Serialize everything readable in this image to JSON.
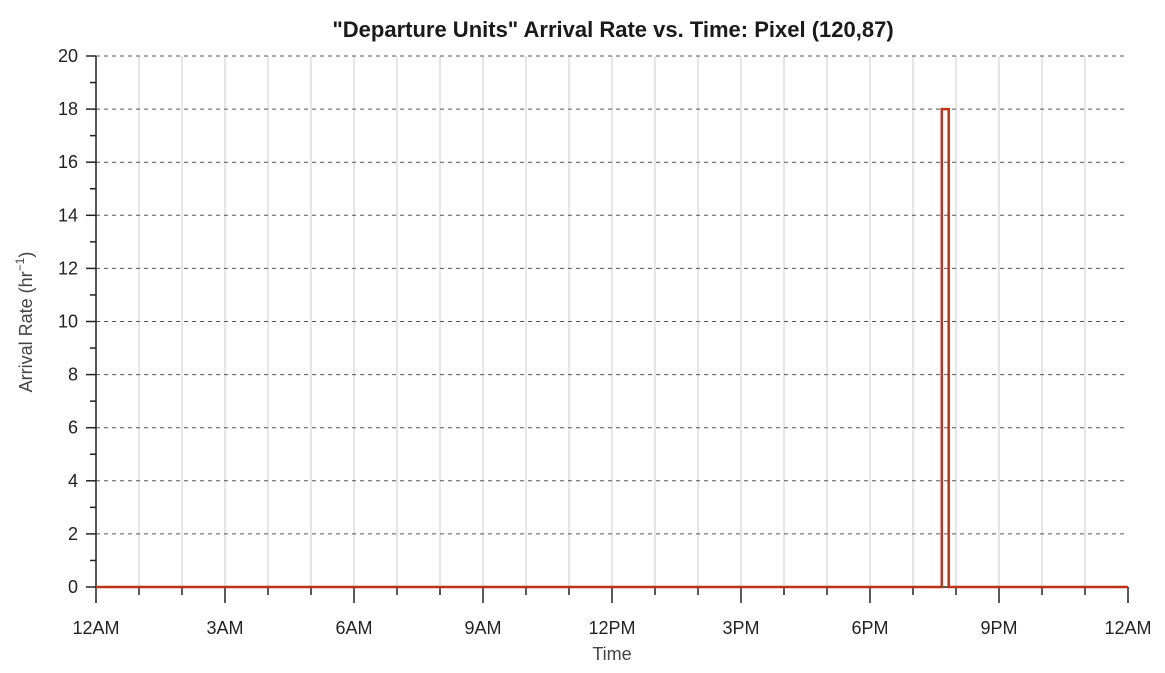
{
  "chart_data": {
    "type": "line",
    "title": "\"Departure Units\" Arrival Rate vs. Time: Pixel (120,87)",
    "xlabel": "Time",
    "ylabel": "Arrival Rate (hr",
    "ylabel_sup": "−1",
    "ylabel_close": ")",
    "xlim": [
      0,
      24
    ],
    "ylim": [
      0,
      20
    ],
    "x_ticks": [
      {
        "value": 0,
        "label": "12AM"
      },
      {
        "value": 3,
        "label": "3AM"
      },
      {
        "value": 6,
        "label": "6AM"
      },
      {
        "value": 9,
        "label": "9AM"
      },
      {
        "value": 12,
        "label": "12PM"
      },
      {
        "value": 15,
        "label": "3PM"
      },
      {
        "value": 18,
        "label": "6PM"
      },
      {
        "value": 21,
        "label": "9PM"
      },
      {
        "value": 24,
        "label": "12AM"
      }
    ],
    "y_ticks": [
      0,
      2,
      4,
      6,
      8,
      10,
      12,
      14,
      16,
      18,
      20
    ],
    "grid": true,
    "series": [
      {
        "color": "#c0311a",
        "points": [
          [
            0,
            0
          ],
          [
            19.67,
            0
          ],
          [
            19.67,
            18
          ],
          [
            19.83,
            18
          ],
          [
            19.83,
            0
          ],
          [
            24,
            0
          ]
        ]
      }
    ]
  }
}
